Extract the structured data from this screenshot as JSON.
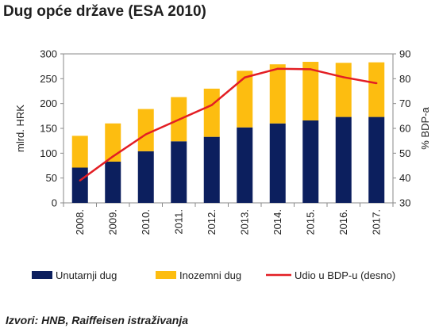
{
  "chart_data": {
    "type": "bar",
    "title": "Dug opće države (ESA 2010)",
    "categories": [
      "2008.",
      "2009.",
      "2010.",
      "2011.",
      "2012.",
      "2013.",
      "2014.",
      "2015.",
      "2016.",
      "2017."
    ],
    "stacked": true,
    "series": [
      {
        "name": "Unutarnji dug",
        "type": "bar",
        "axis": "left",
        "color": "#0c1f5e",
        "values": [
          71,
          83,
          104,
          124,
          133,
          152,
          160,
          166,
          173,
          173
        ]
      },
      {
        "name": "Inozemni dug",
        "type": "bar",
        "axis": "left",
        "color": "#fdbd10",
        "values": [
          64,
          77,
          85,
          89,
          97,
          114,
          119,
          118,
          109,
          110
        ]
      },
      {
        "name": "Udio u BDP-u (desno)",
        "type": "line",
        "axis": "right",
        "color": "#e31e24",
        "values": [
          39,
          48.7,
          57.6,
          63.5,
          69.4,
          80.5,
          84,
          83.8,
          80.6,
          78.2
        ]
      }
    ],
    "ylabel": "mlrd. HRK",
    "ylim": [
      0,
      300
    ],
    "yticks": [
      0,
      50,
      100,
      150,
      200,
      250,
      300
    ],
    "y2label": "% BDP-a",
    "y2lim": [
      30,
      90
    ],
    "y2ticks": [
      30,
      40,
      50,
      60,
      70,
      80,
      90
    ],
    "grid": false,
    "legend": "bottom"
  },
  "source": "Izvori: HNB, Raiffeisen istraživanja"
}
